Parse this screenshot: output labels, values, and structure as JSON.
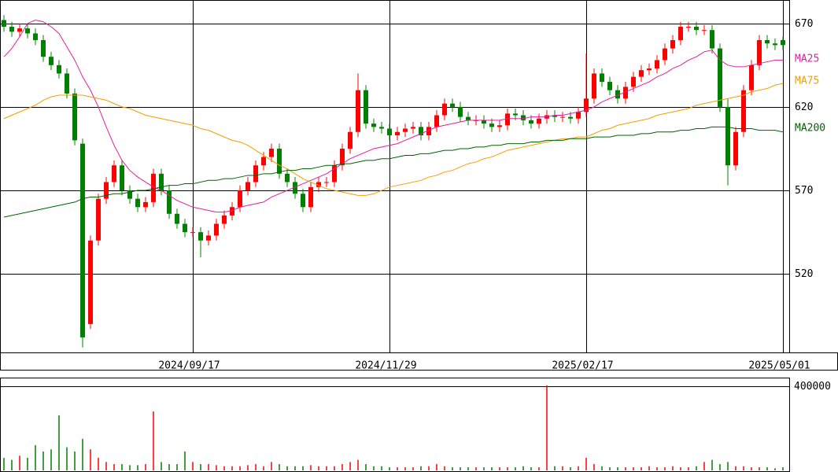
{
  "chart_data": {
    "type": "candlestick",
    "categories": [
      null,
      null,
      null,
      null,
      null,
      null,
      null,
      null,
      null,
      null,
      null,
      null,
      null,
      null,
      null,
      null,
      null,
      null,
      null,
      null,
      null,
      null,
      null,
      null,
      "2024/09/17",
      null,
      null,
      null,
      null,
      null,
      null,
      null,
      null,
      null,
      null,
      null,
      null,
      null,
      null,
      null,
      null,
      null,
      null,
      null,
      null,
      null,
      null,
      null,
      null,
      "2024/11/29",
      null,
      null,
      null,
      null,
      null,
      null,
      null,
      null,
      null,
      null,
      null,
      null,
      null,
      null,
      null,
      null,
      null,
      null,
      null,
      null,
      null,
      null,
      null,
      null,
      "2025/02/17",
      null,
      null,
      null,
      null,
      null,
      null,
      null,
      null,
      null,
      null,
      null,
      null,
      null,
      null,
      null,
      null,
      null,
      null,
      null,
      null,
      null,
      null,
      null,
      null,
      "2025/05/01"
    ],
    "open": [
      672,
      668,
      665,
      667,
      664,
      660,
      650,
      645,
      640,
      628,
      598,
      490,
      540,
      565,
      575,
      585,
      570,
      565,
      560,
      563,
      580,
      570,
      556,
      550,
      545,
      545,
      540,
      543,
      550,
      555,
      560,
      570,
      575,
      585,
      590,
      595,
      580,
      575,
      568,
      560,
      572,
      575,
      575,
      585,
      595,
      605,
      630,
      610,
      608,
      607,
      603,
      605,
      607,
      608,
      603,
      608,
      615,
      622,
      620,
      614,
      612,
      612,
      610,
      608,
      609,
      616,
      615,
      612,
      610,
      613,
      615,
      614,
      614,
      613,
      617,
      625,
      640,
      635,
      630,
      625,
      632,
      638,
      642,
      643,
      648,
      655,
      660,
      668,
      668,
      666,
      666,
      655,
      620,
      585,
      605,
      630,
      645,
      660,
      658,
      660
    ],
    "high": [
      675,
      671,
      670,
      670,
      667,
      663,
      653,
      648,
      643,
      631,
      601,
      543,
      568,
      578,
      588,
      588,
      573,
      568,
      566,
      583,
      583,
      573,
      559,
      553,
      548,
      548,
      546,
      553,
      558,
      563,
      573,
      578,
      588,
      593,
      598,
      598,
      583,
      578,
      571,
      575,
      578,
      578,
      588,
      598,
      608,
      640,
      633,
      613,
      611,
      610,
      608,
      610,
      611,
      611,
      611,
      618,
      625,
      625,
      623,
      617,
      615,
      615,
      613,
      612,
      619,
      619,
      618,
      615,
      616,
      618,
      618,
      617,
      617,
      620,
      652,
      643,
      643,
      638,
      633,
      635,
      641,
      645,
      646,
      651,
      658,
      663,
      671,
      671,
      671,
      669,
      669,
      658,
      625,
      608,
      633,
      648,
      663,
      663,
      661,
      662
    ],
    "low": [
      665,
      662,
      662,
      661,
      657,
      647,
      642,
      637,
      625,
      597,
      476,
      487,
      537,
      562,
      572,
      567,
      562,
      557,
      557,
      560,
      567,
      553,
      547,
      542,
      542,
      530,
      537,
      540,
      547,
      552,
      557,
      567,
      572,
      582,
      587,
      577,
      572,
      565,
      557,
      557,
      569,
      572,
      572,
      582,
      592,
      602,
      607,
      605,
      604,
      600,
      600,
      602,
      604,
      600,
      600,
      605,
      612,
      617,
      611,
      609,
      609,
      607,
      605,
      605,
      606,
      612,
      609,
      607,
      607,
      610,
      611,
      611,
      610,
      610,
      614,
      622,
      632,
      627,
      622,
      622,
      629,
      635,
      639,
      640,
      645,
      652,
      657,
      665,
      663,
      663,
      652,
      617,
      573,
      582,
      602,
      627,
      642,
      655,
      654,
      654
    ],
    "close": [
      668,
      665,
      667,
      664,
      660,
      650,
      645,
      640,
      628,
      600,
      482,
      540,
      565,
      575,
      585,
      570,
      565,
      560,
      563,
      580,
      570,
      556,
      550,
      545,
      545,
      540,
      543,
      550,
      555,
      560,
      570,
      575,
      585,
      590,
      595,
      580,
      575,
      568,
      560,
      572,
      575,
      575,
      585,
      595,
      605,
      630,
      610,
      608,
      607,
      603,
      605,
      607,
      608,
      603,
      608,
      615,
      622,
      620,
      614,
      612,
      612,
      610,
      608,
      609,
      616,
      615,
      612,
      610,
      613,
      615,
      614,
      614,
      613,
      617,
      625,
      640,
      635,
      630,
      625,
      632,
      638,
      642,
      643,
      648,
      655,
      660,
      668,
      668,
      666,
      666,
      655,
      620,
      585,
      605,
      630,
      645,
      660,
      658,
      657,
      657
    ],
    "up_color": "#ff0000",
    "down_color": "#008000",
    "ylim": [
      473,
      684
    ],
    "yticks": [
      520,
      570,
      620,
      670
    ],
    "grid": true,
    "moving_averages": [
      {
        "name": "MA25",
        "color": "#e020a0",
        "values": [
          650,
          655,
          662,
          670,
          672,
          671,
          668,
          664,
          656,
          648,
          638,
          630,
          620,
          608,
          597,
          588,
          582,
          578,
          575,
          572,
          570,
          567,
          564,
          562,
          560,
          559,
          558,
          557,
          557,
          558,
          560,
          561,
          562,
          563,
          566,
          568,
          570,
          572,
          574,
          576,
          578,
          580,
          583,
          586,
          589,
          591,
          593,
          595,
          596,
          597,
          598,
          600,
          602,
          604,
          606,
          608,
          609,
          610,
          611,
          612,
          612,
          612,
          612,
          612,
          613,
          613,
          613,
          614,
          614,
          614,
          615,
          615,
          616,
          617,
          618,
          620,
          623,
          625,
          627,
          629,
          631,
          633,
          635,
          638,
          640,
          643,
          645,
          648,
          650,
          653,
          654,
          648,
          645,
          644,
          644,
          645,
          646,
          647,
          648,
          648
        ]
      },
      {
        "name": "MA75",
        "color": "#f0a000",
        "values": [
          613,
          615,
          617,
          619,
          621,
          624,
          626,
          627,
          627,
          627,
          627,
          626,
          625,
          624,
          622,
          620,
          619,
          617,
          615,
          614,
          613,
          612,
          611,
          610,
          609,
          607,
          606,
          604,
          602,
          600,
          599,
          597,
          594,
          591,
          588,
          585,
          583,
          580,
          577,
          575,
          573,
          571,
          570,
          569,
          568,
          567,
          567,
          568,
          570,
          572,
          573,
          574,
          575,
          576,
          578,
          579,
          581,
          582,
          584,
          586,
          587,
          589,
          590,
          592,
          594,
          595,
          596,
          597,
          598,
          599,
          600,
          601,
          601,
          602,
          602,
          604,
          606,
          607,
          609,
          610,
          611,
          612,
          613,
          615,
          616,
          617,
          618,
          619,
          621,
          622,
          623,
          624,
          625,
          626,
          627,
          629,
          630,
          631,
          633,
          634
        ]
      },
      {
        "name": "MA200",
        "color": "#006400",
        "values": [
          554,
          555,
          556,
          557,
          558,
          559,
          560,
          561,
          562,
          563,
          565,
          566,
          566,
          567,
          568,
          568,
          569,
          570,
          570,
          571,
          572,
          573,
          573,
          574,
          574,
          575,
          576,
          576,
          577,
          577,
          578,
          579,
          579,
          580,
          580,
          581,
          582,
          582,
          583,
          583,
          584,
          585,
          585,
          586,
          586,
          587,
          588,
          588,
          589,
          589,
          590,
          591,
          591,
          592,
          592,
          593,
          594,
          594,
          595,
          595,
          596,
          596,
          597,
          597,
          598,
          598,
          598,
          599,
          599,
          600,
          600,
          600,
          601,
          601,
          601,
          602,
          602,
          602,
          603,
          603,
          603,
          604,
          604,
          605,
          605,
          605,
          606,
          606,
          607,
          607,
          608,
          608,
          608,
          607,
          607,
          607,
          606,
          606,
          606,
          605
        ]
      }
    ],
    "volume": {
      "ylim": [
        0,
        441000
      ],
      "yticks": [
        400000
      ],
      "values": [
        60000,
        50000,
        70000,
        60000,
        120000,
        90000,
        100000,
        262000,
        110000,
        90000,
        150000,
        100000,
        60000,
        40000,
        30000,
        30000,
        25000,
        25000,
        30000,
        280000,
        40000,
        30000,
        30000,
        90000,
        40000,
        30000,
        30000,
        25000,
        20000,
        20000,
        20000,
        25000,
        30000,
        20000,
        40000,
        30000,
        20000,
        20000,
        20000,
        25000,
        20000,
        20000,
        20000,
        30000,
        40000,
        50000,
        30000,
        20000,
        20000,
        15000,
        15000,
        15000,
        15000,
        20000,
        20000,
        30000,
        20000,
        15000,
        15000,
        15000,
        15000,
        15000,
        15000,
        15000,
        15000,
        15000,
        20000,
        15000,
        15000,
        404000,
        20000,
        20000,
        15000,
        20000,
        60000,
        30000,
        20000,
        15000,
        15000,
        15000,
        15000,
        15000,
        20000,
        15000,
        15000,
        20000,
        15000,
        15000,
        20000,
        40000,
        50000,
        30000,
        40000,
        20000,
        20000,
        15000,
        15000,
        15000,
        10000,
        15000
      ]
    }
  }
}
